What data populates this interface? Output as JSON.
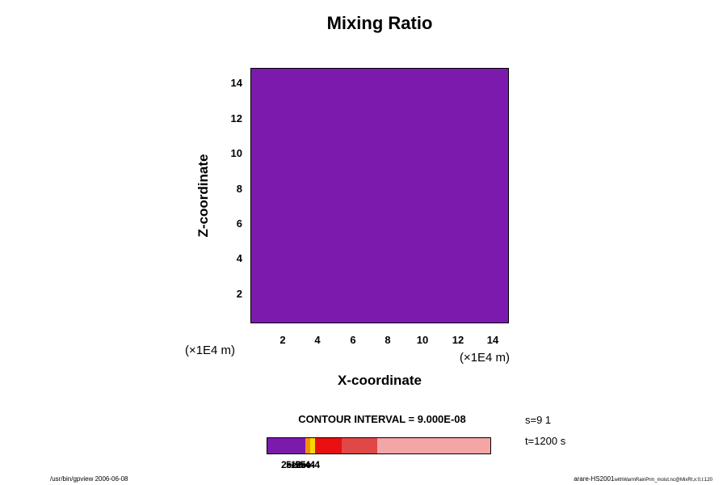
{
  "title": "Mixing Ratio",
  "axes": {
    "x": {
      "label": "X-coordinate",
      "unit": "(×1E4 m)",
      "ticks": [
        "2",
        "4",
        "6",
        "8",
        "10",
        "12",
        "14"
      ]
    },
    "y": {
      "label": "Z-coordinate",
      "unit": "(×1E4 m)",
      "ticks": [
        "14",
        "12",
        "10",
        "8",
        "6",
        "4",
        "2"
      ]
    }
  },
  "colors": {
    "field_fill": "#7D1AAE",
    "plot_border": "#000000"
  },
  "contour_note": "CONTOUR INTERVAL = 9.000E-08",
  "annotations": {
    "s": "s=9 1",
    "t": "t=1200 s"
  },
  "colorbar": {
    "segments": [
      {
        "color": "#7D1AAE",
        "width": 0.169
      },
      {
        "color": "#F59000",
        "width": 0.022
      },
      {
        "color": "#F5D800",
        "width": 0.022
      },
      {
        "color": "#E81010",
        "width": 0.122
      },
      {
        "color": "#E04848",
        "width": 0.158
      },
      {
        "color": "#F4A6A6",
        "width": 0.507
      }
    ],
    "labels": [
      "2e-5",
      "5e-5",
      "1e-4",
      "2e-4",
      "5e-4"
    ]
  },
  "footer": {
    "left": "/usr/bin/gpview 2006-06-08",
    "right_main": "arare-HS2001",
    "right_sub": "withWarmRainPrm_moist.nc@MixRt,x:0,t:120"
  },
  "chart_data": {
    "type": "heatmap",
    "title": "Mixing Ratio",
    "xlabel": "X-coordinate",
    "ylabel": "Z-coordinate",
    "x_unit": "(×1E4 m)",
    "y_unit": "(×1E4 m)",
    "xticks": [
      2,
      4,
      6,
      8,
      10,
      12,
      14
    ],
    "yticks": [
      2,
      4,
      6,
      8,
      10,
      12,
      14
    ],
    "xlim": [
      0,
      15
    ],
    "ylim": [
      0,
      15
    ],
    "contour_interval": "9.000E-08",
    "field": "uniform fill: entire domain rendered in lowest color bin (purple), no contour structure visible",
    "levels": [
      "2e-5",
      "5e-5",
      "1e-4",
      "2e-4",
      "5e-4"
    ],
    "level_colors": [
      "#7D1AAE",
      "#F59000",
      "#F5D800",
      "#E81010",
      "#E04848",
      "#F4A6A6"
    ],
    "annotations": [
      "s=9 1",
      "t=1200 s"
    ],
    "grid": false,
    "legend_position": "bottom colorbar"
  }
}
